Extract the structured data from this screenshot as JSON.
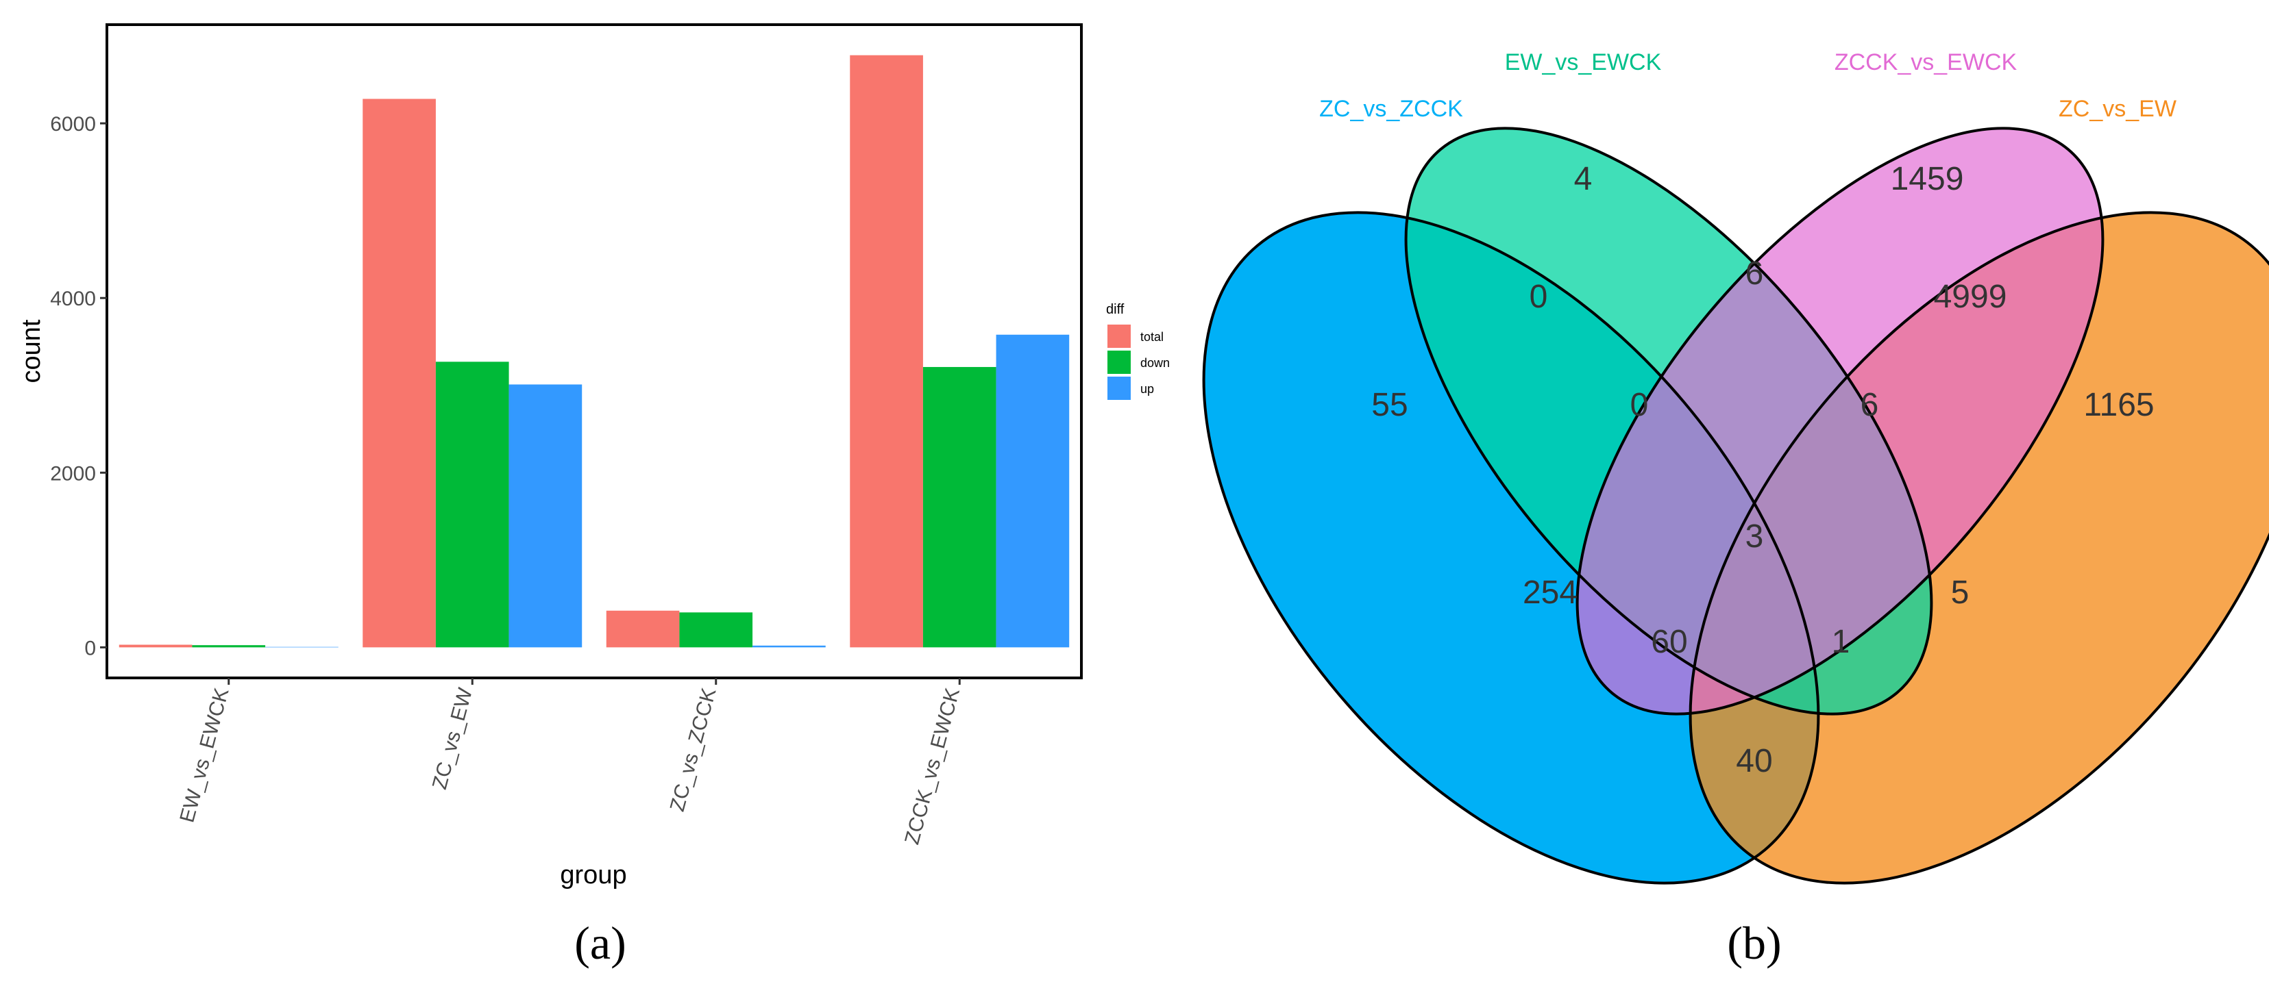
{
  "chart_data": [
    {
      "type": "bar",
      "panel_label": "(a)",
      "title": "",
      "xlabel": "group",
      "ylabel": "count",
      "categories": [
        "EW_vs_EWCK",
        "ZC_vs_EW",
        "ZC_vs_ZCCK",
        "ZCCK_vs_EWCK"
      ],
      "series": [
        {
          "name": "total",
          "color": "#F8766D",
          "values": [
            30,
            6280,
            420,
            6780
          ]
        },
        {
          "name": "down",
          "color": "#00BA38",
          "values": [
            25,
            3270,
            400,
            3210
          ]
        },
        {
          "name": "up",
          "color": "#3399FF",
          "values": [
            5,
            3010,
            20,
            3580
          ]
        }
      ],
      "ylim": [
        -350,
        7130
      ],
      "yticks": [
        0,
        2000,
        4000,
        6000
      ],
      "ytick_labels": [
        "0",
        "2000",
        "4000",
        "6000"
      ],
      "legend_title": "diff",
      "legend_position": "right",
      "grid": false
    },
    {
      "type": "venn",
      "panel_label": "(b)",
      "sets": [
        {
          "name": "ZC_vs_ZCCK",
          "color": "#00B0F6"
        },
        {
          "name": "EW_vs_EWCK",
          "color": "#00D4A0"
        },
        {
          "name": "ZCCK_vs_EWCK",
          "color": "#E26AD4"
        },
        {
          "name": "ZC_vs_EW",
          "color": "#F58D1E"
        }
      ],
      "regions": [
        {
          "sets": [
            "ZC_vs_ZCCK"
          ],
          "count": 55
        },
        {
          "sets": [
            "EW_vs_EWCK"
          ],
          "count": 4
        },
        {
          "sets": [
            "ZCCK_vs_EWCK"
          ],
          "count": 1459
        },
        {
          "sets": [
            "ZC_vs_EW"
          ],
          "count": 1165
        },
        {
          "sets": [
            "ZC_vs_ZCCK",
            "EW_vs_EWCK"
          ],
          "count": 0
        },
        {
          "sets": [
            "EW_vs_EWCK",
            "ZCCK_vs_EWCK"
          ],
          "count": 6
        },
        {
          "sets": [
            "ZCCK_vs_EWCK",
            "ZC_vs_EW"
          ],
          "count": 4999
        },
        {
          "sets": [
            "ZC_vs_ZCCK",
            "ZCCK_vs_EWCK"
          ],
          "count": 254
        },
        {
          "sets": [
            "EW_vs_EWCK",
            "ZC_vs_EW"
          ],
          "count": 5
        },
        {
          "sets": [
            "ZC_vs_ZCCK",
            "ZC_vs_EW"
          ],
          "count": 40
        },
        {
          "sets": [
            "ZC_vs_ZCCK",
            "EW_vs_EWCK",
            "ZCCK_vs_EWCK"
          ],
          "count": 0
        },
        {
          "sets": [
            "EW_vs_EWCK",
            "ZCCK_vs_EWCK",
            "ZC_vs_EW"
          ],
          "count": 6
        },
        {
          "sets": [
            "ZC_vs_ZCCK",
            "ZCCK_vs_EWCK",
            "ZC_vs_EW"
          ],
          "count": 60
        },
        {
          "sets": [
            "ZC_vs_ZCCK",
            "EW_vs_EWCK",
            "ZC_vs_EW"
          ],
          "count": 1
        },
        {
          "sets": [
            "ZC_vs_ZCCK",
            "EW_vs_EWCK",
            "ZCCK_vs_EWCK",
            "ZC_vs_EW"
          ],
          "count": 3
        }
      ]
    }
  ]
}
